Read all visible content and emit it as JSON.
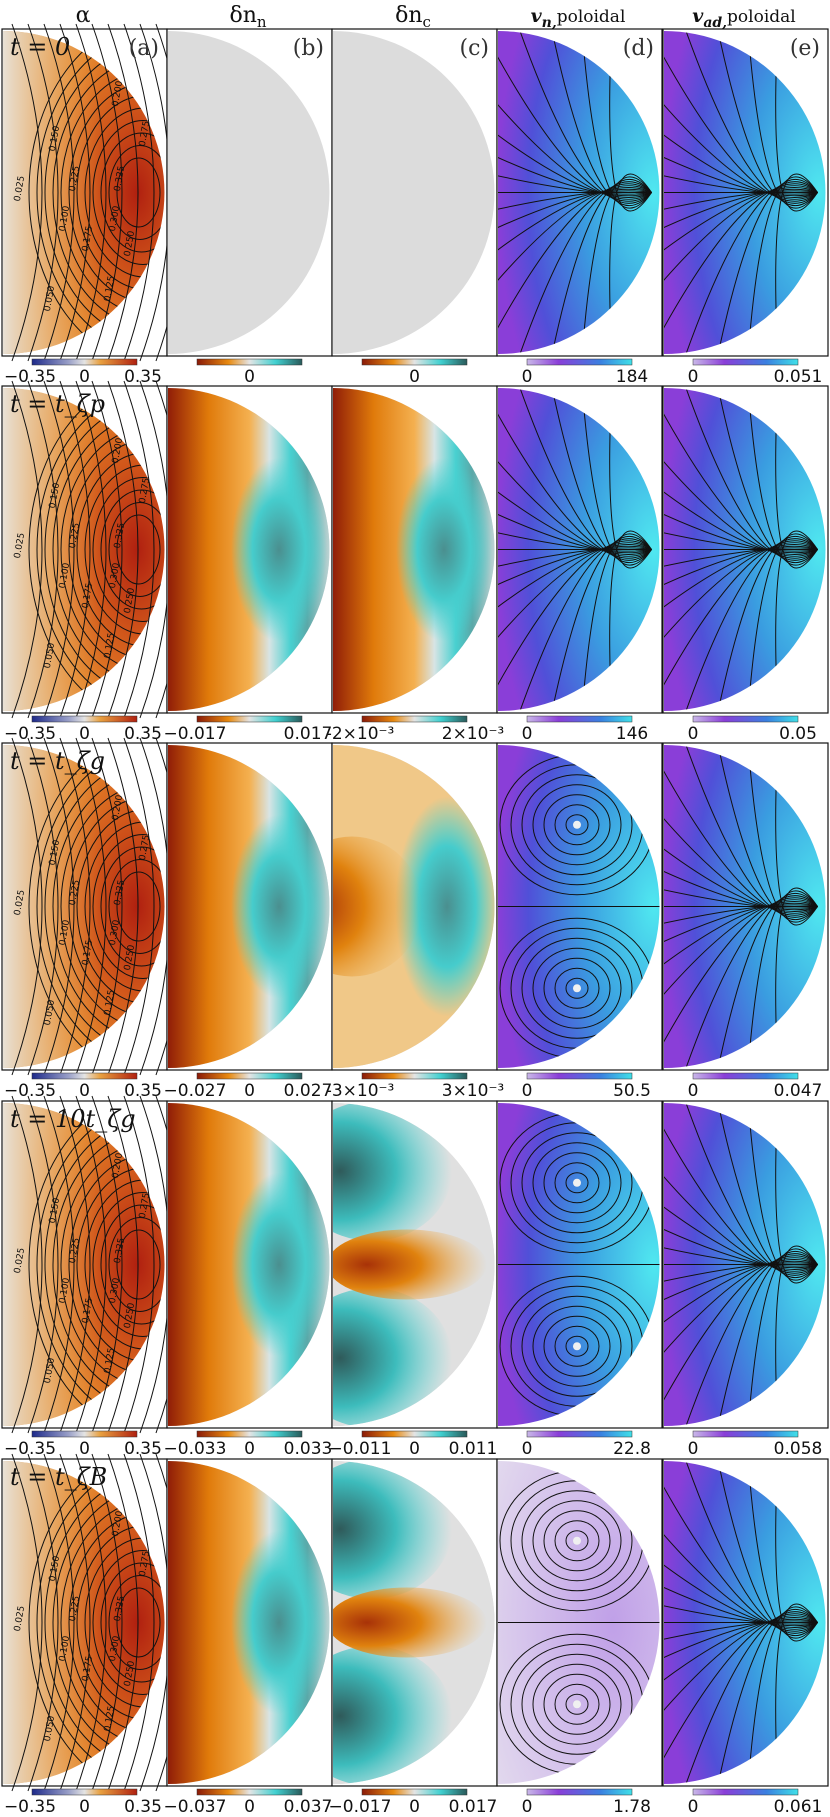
{
  "columns": [
    {
      "key": "alpha",
      "title": "α",
      "letter": "(a)"
    },
    {
      "key": "dnn",
      "title": "δn",
      "sub": "n",
      "letter": "(b)"
    },
    {
      "key": "dnc",
      "title": "δn",
      "sub": "c",
      "letter": "(c)"
    },
    {
      "key": "vn",
      "title": "v",
      "sub": "n,",
      "tail": "poloidal",
      "letter": "(d)"
    },
    {
      "key": "vad",
      "title": "v",
      "sub": "ad,",
      "tail": "poloidal",
      "letter": "(e)"
    }
  ],
  "rows": [
    {
      "label": "t = 0",
      "colorbars": [
        [
          "−0.35",
          "0",
          "0.35"
        ],
        [
          "",
          "0",
          ""
        ],
        [
          "",
          "0",
          ""
        ],
        [
          "0",
          "184"
        ],
        [
          "0",
          "0.051"
        ]
      ],
      "dnn_state": "none",
      "dnc_state": "none",
      "vn_state": "radial",
      "vad_state": "radial"
    },
    {
      "label": "t = t_ζp",
      "colorbars": [
        [
          "−0.35",
          "0",
          "0.35"
        ],
        [
          "−0.017",
          "",
          "0.017"
        ],
        [
          "-2×10⁻³",
          "",
          "2×10⁻³"
        ],
        [
          "0",
          "146"
        ],
        [
          "0",
          "0.05"
        ]
      ],
      "dnn_state": "dipole",
      "dnc_state": "dipole",
      "vn_state": "radial",
      "vad_state": "radial"
    },
    {
      "label": "t = t_ζg",
      "colorbars": [
        [
          "−0.35",
          "0",
          "0.35"
        ],
        [
          "−0.027",
          "0",
          "0.027"
        ],
        [
          "-3×10⁻³",
          "",
          "3×10⁻³"
        ],
        [
          "0",
          "50.5"
        ],
        [
          "0",
          "0.047"
        ]
      ],
      "dnn_state": "dipole",
      "dnc_state": "ring",
      "vn_state": "vortex",
      "vad_state": "radial"
    },
    {
      "label": "t = 10t_ζg",
      "colorbars": [
        [
          "−0.35",
          "0",
          "0.35"
        ],
        [
          "−0.033",
          "0",
          "0.033"
        ],
        [
          "−0.011",
          "0",
          "0.011"
        ],
        [
          "0",
          "22.8"
        ],
        [
          "0",
          "0.058"
        ]
      ],
      "dnn_state": "dipole",
      "dnc_state": "quad",
      "vn_state": "vortex",
      "vad_state": "radial"
    },
    {
      "label": "t = t_ζB",
      "colorbars": [
        [
          "−0.35",
          "0",
          "0.35"
        ],
        [
          "−0.037",
          "0",
          "0.037"
        ],
        [
          "−0.017",
          "0",
          "0.017"
        ],
        [
          "0",
          "1.78"
        ],
        [
          "0",
          "0.061"
        ]
      ],
      "dnn_state": "dipole",
      "dnc_state": "quad",
      "vn_state": "vortex-pale",
      "vad_state": "radial"
    }
  ],
  "contour_labels": [
    "0.025",
    "0.050",
    "0.100",
    "0.125",
    "0.150",
    "0.175",
    "0.200",
    "0.225",
    "0.250",
    "0.275",
    "0.300",
    "0.325"
  ],
  "colors": {
    "orange": "#e8940c",
    "dark_red": "#8b1a0a",
    "cyan": "#3ed6d6",
    "dark_teal": "#3a6f6f",
    "grey": "#dcdcdc",
    "purple": "#7b3ed8",
    "blue": "#3e7fd8"
  }
}
